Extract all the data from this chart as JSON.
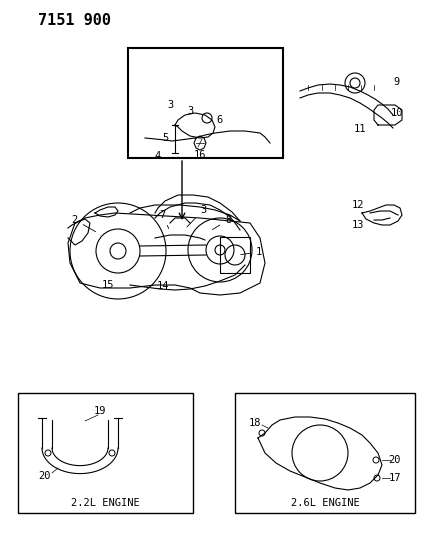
{
  "title_code": "7151 900",
  "bg_color": "#ffffff",
  "line_color": "#000000",
  "gray_color": "#888888",
  "light_gray": "#cccccc",
  "title_fontsize": 11,
  "label_fontsize": 7.5,
  "fig_width": 4.28,
  "fig_height": 5.33,
  "dpi": 100,
  "parts": {
    "main_engine_label": "",
    "insert_2_2_label": "2.2L ENGINE",
    "insert_2_6_label": "2.6L ENGINE"
  },
  "part_numbers_main": [
    1,
    2,
    3,
    4,
    5,
    6,
    7,
    8,
    9,
    10,
    11,
    12,
    13,
    14,
    15,
    16
  ],
  "part_numbers_2_2": [
    19,
    20
  ],
  "part_numbers_2_6": [
    17,
    18,
    20
  ]
}
